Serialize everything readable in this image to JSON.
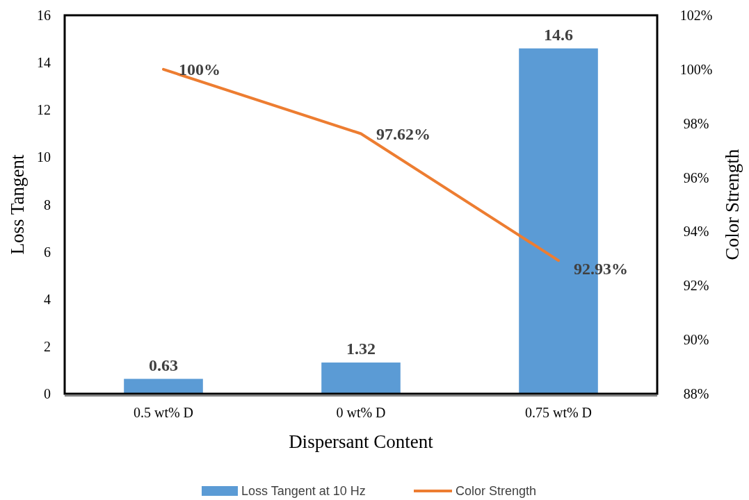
{
  "chart_data": {
    "type": "bar",
    "xlabel": "Dispersant Content",
    "ylabel": "Loss Tangent",
    "y2label": "Color Strength",
    "categories": [
      "0.5 wt% D",
      "0 wt% D",
      "0.75 wt% D"
    ],
    "series": [
      {
        "name": "Loss Tangent at 10 Hz",
        "color": "#5b9bd5",
        "values": [
          0.63,
          1.32,
          14.6
        ],
        "value_labels": [
          "0.63",
          "1.32",
          "14.6"
        ]
      },
      {
        "name": "Color Strength",
        "type": "line",
        "axis": "y2",
        "color": "#ed7d31",
        "values": [
          100,
          97.62,
          92.93
        ],
        "value_labels": [
          "100%",
          "97.62%",
          "92.93%"
        ]
      }
    ],
    "ylim": [
      0,
      16
    ],
    "yticks": [
      0,
      2,
      4,
      6,
      8,
      10,
      12,
      14,
      16
    ],
    "y2lim": [
      88,
      102
    ],
    "y2ticks": [
      {
        "value": 88,
        "label": "88%"
      },
      {
        "value": 90,
        "label": "90%"
      },
      {
        "value": 92,
        "label": "92%"
      },
      {
        "value": 94,
        "label": "94%"
      },
      {
        "value": 96,
        "label": "96%"
      },
      {
        "value": 98,
        "label": "98%"
      },
      {
        "value": 100,
        "label": "100%"
      },
      {
        "value": 102,
        "label": "102%"
      }
    ],
    "grid": false,
    "legend": "bottom",
    "marker": "none",
    "line_style": "solid"
  }
}
